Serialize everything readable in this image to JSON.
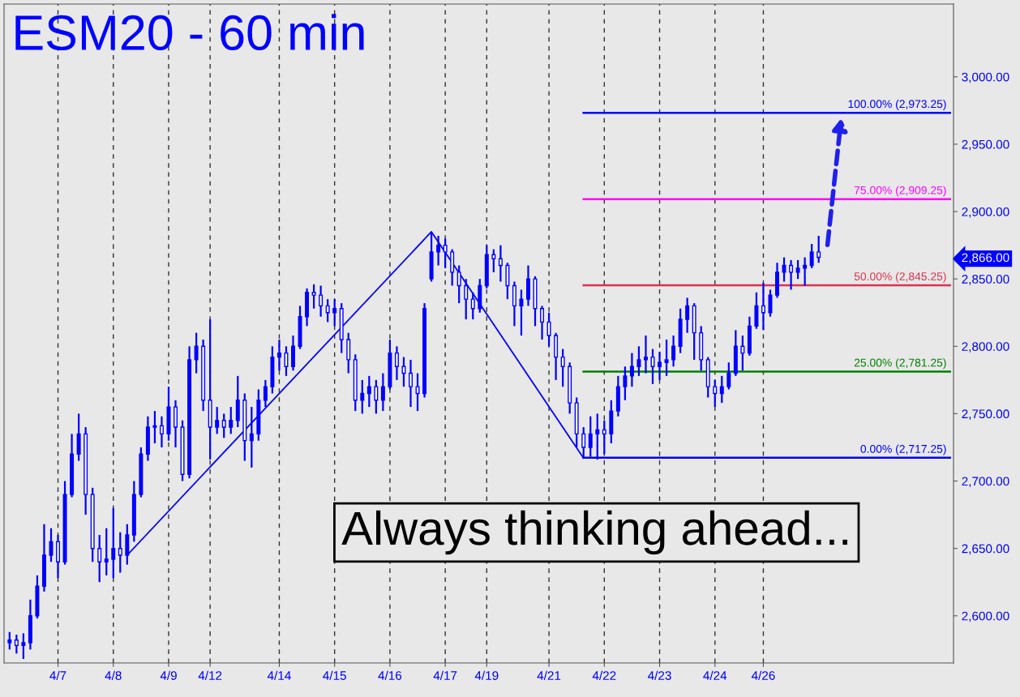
{
  "chart_data": {
    "type": "candlestick",
    "title": "ESM20 - 60 min",
    "categories": [
      null,
      null,
      null,
      null,
      null,
      null,
      null,
      "4/7",
      null,
      null,
      null,
      null,
      null,
      null,
      null,
      "4/8",
      null,
      null,
      null,
      null,
      null,
      null,
      null,
      "4/9",
      null,
      null,
      null,
      null,
      null,
      "4/12",
      null,
      null,
      null,
      null,
      null,
      null,
      null,
      null,
      null,
      "4/14",
      null,
      null,
      null,
      null,
      null,
      null,
      null,
      "4/15",
      null,
      null,
      null,
      null,
      null,
      null,
      null,
      "4/16",
      null,
      null,
      null,
      null,
      null,
      null,
      null,
      "4/17",
      null,
      null,
      null,
      null,
      null,
      "4/19",
      null,
      null,
      null,
      null,
      null,
      null,
      null,
      null,
      "4/21",
      null,
      null,
      null,
      null,
      null,
      null,
      null,
      "4/22",
      null,
      null,
      null,
      null,
      null,
      null,
      null,
      "4/23",
      null,
      null,
      null,
      null,
      null,
      null,
      null,
      "4/24",
      null,
      null,
      null,
      null,
      null,
      null,
      "4/26",
      null,
      null,
      null,
      null,
      null,
      null,
      null,
      null,
      null,
      null,
      null,
      null,
      null,
      null,
      null,
      null,
      null,
      null,
      null,
      null,
      null,
      null,
      null,
      null,
      null,
      null,
      null
    ],
    "ohlc": [
      [
        2580,
        2588,
        2575,
        2582
      ],
      [
        2582,
        2586,
        2572,
        2578
      ],
      [
        2578,
        2587,
        2568,
        2580
      ],
      [
        2580,
        2612,
        2575,
        2600
      ],
      [
        2600,
        2630,
        2598,
        2622
      ],
      [
        2622,
        2668,
        2618,
        2645
      ],
      [
        2645,
        2665,
        2640,
        2655
      ],
      [
        2655,
        2660,
        2628,
        2640
      ],
      [
        2640,
        2700,
        2638,
        2690
      ],
      [
        2690,
        2735,
        2688,
        2720
      ],
      [
        2720,
        2750,
        2715,
        2735
      ],
      [
        2735,
        2740,
        2675,
        2690
      ],
      [
        2690,
        2695,
        2640,
        2650
      ],
      [
        2650,
        2660,
        2625,
        2640
      ],
      [
        2640,
        2665,
        2630,
        2642
      ],
      [
        2642,
        2680,
        2628,
        2650
      ],
      [
        2650,
        2662,
        2632,
        2645
      ],
      [
        2645,
        2668,
        2638,
        2660
      ],
      [
        2660,
        2700,
        2655,
        2690
      ],
      [
        2690,
        2725,
        2688,
        2720
      ],
      [
        2720,
        2748,
        2715,
        2740
      ],
      [
        2740,
        2752,
        2728,
        2741
      ],
      [
        2741,
        2748,
        2725,
        2735
      ],
      [
        2735,
        2770,
        2730,
        2755
      ],
      [
        2755,
        2760,
        2725,
        2740
      ],
      [
        2740,
        2745,
        2700,
        2705
      ],
      [
        2705,
        2800,
        2702,
        2790
      ],
      [
        2790,
        2810,
        2780,
        2800
      ],
      [
        2800,
        2805,
        2752,
        2760
      ],
      [
        2760,
        2820,
        2716,
        2740
      ],
      [
        2740,
        2755,
        2735,
        2745
      ],
      [
        2745,
        2750,
        2732,
        2740
      ],
      [
        2740,
        2755,
        2735,
        2745
      ],
      [
        2745,
        2778,
        2740,
        2760
      ],
      [
        2760,
        2765,
        2715,
        2730
      ],
      [
        2730,
        2755,
        2710,
        2735
      ],
      [
        2735,
        2768,
        2730,
        2760
      ],
      [
        2760,
        2775,
        2755,
        2770
      ],
      [
        2770,
        2800,
        2765,
        2792
      ],
      [
        2792,
        2805,
        2782,
        2795
      ],
      [
        2795,
        2800,
        2778,
        2785
      ],
      [
        2785,
        2808,
        2782,
        2800
      ],
      [
        2800,
        2830,
        2798,
        2822
      ],
      [
        2822,
        2843,
        2815,
        2840
      ],
      [
        2840,
        2846,
        2828,
        2838
      ],
      [
        2838,
        2845,
        2822,
        2830
      ],
      [
        2830,
        2835,
        2818,
        2825
      ],
      [
        2825,
        2835,
        2815,
        2828
      ],
      [
        2828,
        2832,
        2795,
        2805
      ],
      [
        2805,
        2810,
        2780,
        2790
      ],
      [
        2790,
        2794,
        2752,
        2760
      ],
      [
        2760,
        2775,
        2750,
        2765
      ],
      [
        2765,
        2778,
        2755,
        2770
      ],
      [
        2770,
        2775,
        2750,
        2760
      ],
      [
        2760,
        2780,
        2752,
        2770
      ],
      [
        2770,
        2805,
        2768,
        2795
      ],
      [
        2795,
        2800,
        2775,
        2785
      ],
      [
        2785,
        2792,
        2770,
        2780
      ],
      [
        2780,
        2790,
        2755,
        2770
      ],
      [
        2770,
        2780,
        2752,
        2765
      ],
      [
        2765,
        2832,
        2762,
        2828
      ],
      [
        2850,
        2884,
        2848,
        2870
      ],
      [
        2870,
        2882,
        2860,
        2875
      ],
      [
        2875,
        2880,
        2858,
        2870
      ],
      [
        2870,
        2872,
        2845,
        2855
      ],
      [
        2855,
        2860,
        2832,
        2845
      ],
      [
        2845,
        2850,
        2820,
        2835
      ],
      [
        2835,
        2840,
        2820,
        2828
      ],
      [
        2828,
        2850,
        2825,
        2845
      ],
      [
        2845,
        2875,
        2843,
        2868
      ],
      [
        2868,
        2872,
        2855,
        2865
      ],
      [
        2865,
        2875,
        2848,
        2860
      ],
      [
        2860,
        2862,
        2835,
        2845
      ],
      [
        2845,
        2848,
        2815,
        2830
      ],
      [
        2830,
        2842,
        2808,
        2835
      ],
      [
        2835,
        2860,
        2830,
        2850
      ],
      [
        2850,
        2852,
        2815,
        2828
      ],
      [
        2828,
        2830,
        2805,
        2818
      ],
      [
        2818,
        2825,
        2800,
        2808
      ],
      [
        2808,
        2810,
        2775,
        2792
      ],
      [
        2792,
        2798,
        2770,
        2785
      ],
      [
        2785,
        2788,
        2750,
        2758
      ],
      [
        2758,
        2762,
        2725,
        2735
      ],
      [
        2735,
        2740,
        2717,
        2725
      ],
      [
        2725,
        2748,
        2718,
        2735
      ],
      [
        2735,
        2750,
        2716,
        2738
      ],
      [
        2738,
        2745,
        2720,
        2735
      ],
      [
        2735,
        2760,
        2728,
        2752
      ],
      [
        2752,
        2778,
        2748,
        2770
      ],
      [
        2770,
        2785,
        2760,
        2778
      ],
      [
        2778,
        2795,
        2770,
        2785
      ],
      [
        2785,
        2800,
        2778,
        2790
      ],
      [
        2790,
        2808,
        2780,
        2792
      ],
      [
        2792,
        2798,
        2772,
        2785
      ],
      [
        2785,
        2796,
        2775,
        2788
      ],
      [
        2788,
        2805,
        2778,
        2790
      ],
      [
        2790,
        2808,
        2785,
        2800
      ],
      [
        2800,
        2828,
        2795,
        2820
      ],
      [
        2820,
        2836,
        2810,
        2830
      ],
      [
        2830,
        2832,
        2790,
        2810
      ],
      [
        2810,
        2815,
        2782,
        2790
      ],
      [
        2790,
        2792,
        2762,
        2770
      ],
      [
        2770,
        2775,
        2755,
        2765
      ],
      [
        2765,
        2778,
        2758,
        2770
      ],
      [
        2770,
        2788,
        2768,
        2780
      ],
      [
        2780,
        2812,
        2778,
        2800
      ],
      [
        2800,
        2808,
        2782,
        2795
      ],
      [
        2795,
        2822,
        2793,
        2815
      ],
      [
        2815,
        2840,
        2813,
        2830
      ],
      [
        2830,
        2847,
        2812,
        2825
      ],
      [
        2825,
        2842,
        2822,
        2838
      ],
      [
        2838,
        2862,
        2836,
        2855
      ],
      [
        2855,
        2866,
        2848,
        2860
      ],
      [
        2860,
        2864,
        2842,
        2855
      ],
      [
        2855,
        2864,
        2850,
        2858
      ],
      [
        2858,
        2866,
        2845,
        2860
      ],
      [
        2860,
        2876,
        2858,
        2870
      ],
      [
        2870,
        2882,
        2862,
        2866
      ],
      null,
      null,
      null,
      null,
      null,
      null,
      null,
      null,
      null,
      null,
      null,
      null,
      null,
      null,
      null,
      null,
      null,
      null,
      null
    ],
    "color": "#0000ff",
    "series": [
      {
        "type": "line",
        "color": "#0000ff",
        "values": [
          null,
          null,
          null,
          null,
          null,
          null,
          null,
          null,
          null,
          null,
          null,
          null,
          null,
          null,
          null,
          null,
          null,
          2645,
          null,
          null,
          null,
          null,
          null,
          null,
          null,
          null,
          null,
          null,
          null,
          null,
          null,
          null,
          null,
          null,
          null,
          null,
          null,
          null,
          null,
          null,
          null,
          null,
          null,
          null,
          null,
          null,
          null,
          null,
          null,
          null,
          null,
          null,
          null,
          null,
          null,
          null,
          null,
          null,
          null,
          null,
          null,
          2885,
          null,
          null,
          null,
          null,
          null,
          null,
          null,
          null,
          null,
          null,
          null,
          null,
          null,
          null,
          null,
          null,
          null,
          null,
          null,
          null,
          null,
          2717,
          null,
          null,
          null,
          null,
          null,
          null,
          null,
          null,
          null,
          null,
          null,
          null,
          null,
          null,
          null,
          null,
          null,
          null,
          null,
          null,
          null,
          null,
          null,
          null,
          null,
          null,
          null,
          null,
          null,
          null,
          null,
          null,
          null,
          null,
          null,
          null,
          null,
          null,
          null,
          null,
          null,
          null,
          null,
          null,
          null,
          null,
          null,
          null,
          null,
          null,
          null,
          null,
          null
        ]
      },
      {
        "type": "line",
        "name": "100.00% (2,973.25)",
        "color": "#0000ff",
        "values": [
          null,
          null,
          null,
          null,
          null,
          null,
          null,
          null,
          null,
          null,
          null,
          null,
          null,
          null,
          null,
          null,
          null,
          null,
          null,
          null,
          null,
          null,
          null,
          null,
          null,
          null,
          null,
          null,
          null,
          null,
          null,
          null,
          null,
          null,
          null,
          null,
          null,
          null,
          null,
          null,
          null,
          null,
          null,
          null,
          null,
          null,
          null,
          null,
          null,
          null,
          null,
          null,
          null,
          null,
          null,
          null,
          null,
          null,
          null,
          null,
          null,
          null,
          null,
          null,
          null,
          null,
          null,
          null,
          null,
          null,
          null,
          null,
          null,
          null,
          null,
          null,
          null,
          null,
          null,
          null,
          null,
          null,
          null,
          2973.25,
          2973.25,
          2973.25,
          2973.25,
          2973.25,
          2973.25,
          2973.25,
          2973.25,
          2973.25,
          2973.25,
          2973.25,
          2973.25,
          2973.25,
          2973.25,
          2973.25,
          2973.25,
          2973.25,
          2973.25,
          2973.25,
          2973.25,
          2973.25,
          2973.25,
          2973.25,
          2973.25,
          2973.25,
          2973.25,
          2973.25,
          2973.25,
          2973.25,
          2973.25,
          2973.25,
          2973.25,
          2973.25,
          2973.25,
          2973.25,
          2973.25,
          2973.25,
          2973.25,
          2973.25,
          2973.25,
          2973.25,
          2973.25,
          2973.25,
          2973.25,
          2973.25,
          2973.25,
          2973.25,
          2973.25,
          2973.25,
          2973.25,
          2973.25,
          2973.25,
          2973.25,
          2973.25
        ]
      },
      {
        "type": "line",
        "name": "75.00% (2,909.25)",
        "color": "#ff00ff",
        "values": [
          null,
          null,
          null,
          null,
          null,
          null,
          null,
          null,
          null,
          null,
          null,
          null,
          null,
          null,
          null,
          null,
          null,
          null,
          null,
          null,
          null,
          null,
          null,
          null,
          null,
          null,
          null,
          null,
          null,
          null,
          null,
          null,
          null,
          null,
          null,
          null,
          null,
          null,
          null,
          null,
          null,
          null,
          null,
          null,
          null,
          null,
          null,
          null,
          null,
          null,
          null,
          null,
          null,
          null,
          null,
          null,
          null,
          null,
          null,
          null,
          null,
          null,
          null,
          null,
          null,
          null,
          null,
          null,
          null,
          null,
          null,
          null,
          null,
          null,
          null,
          null,
          null,
          null,
          null,
          null,
          null,
          null,
          null,
          2909.25,
          2909.25,
          2909.25,
          2909.25,
          2909.25,
          2909.25,
          2909.25,
          2909.25,
          2909.25,
          2909.25,
          2909.25,
          2909.25,
          2909.25,
          2909.25,
          2909.25,
          2909.25,
          2909.25,
          2909.25,
          2909.25,
          2909.25,
          2909.25,
          2909.25,
          2909.25,
          2909.25,
          2909.25,
          2909.25,
          2909.25,
          2909.25,
          2909.25,
          2909.25,
          2909.25,
          2909.25,
          2909.25,
          2909.25,
          2909.25,
          2909.25,
          2909.25,
          2909.25,
          2909.25,
          2909.25,
          2909.25,
          2909.25,
          2909.25,
          2909.25,
          2909.25,
          2909.25,
          2909.25,
          2909.25,
          2909.25,
          2909.25,
          2909.25,
          2909.25,
          2909.25,
          2909.25
        ]
      },
      {
        "type": "line",
        "name": "50.00% (2,845.25)",
        "color": "#dc3250",
        "values": [
          null,
          null,
          null,
          null,
          null,
          null,
          null,
          null,
          null,
          null,
          null,
          null,
          null,
          null,
          null,
          null,
          null,
          null,
          null,
          null,
          null,
          null,
          null,
          null,
          null,
          null,
          null,
          null,
          null,
          null,
          null,
          null,
          null,
          null,
          null,
          null,
          null,
          null,
          null,
          null,
          null,
          null,
          null,
          null,
          null,
          null,
          null,
          null,
          null,
          null,
          null,
          null,
          null,
          null,
          null,
          null,
          null,
          null,
          null,
          null,
          null,
          null,
          null,
          null,
          null,
          null,
          null,
          null,
          null,
          null,
          null,
          null,
          null,
          null,
          null,
          null,
          null,
          null,
          null,
          null,
          null,
          null,
          null,
          2845.25,
          2845.25,
          2845.25,
          2845.25,
          2845.25,
          2845.25,
          2845.25,
          2845.25,
          2845.25,
          2845.25,
          2845.25,
          2845.25,
          2845.25,
          2845.25,
          2845.25,
          2845.25,
          2845.25,
          2845.25,
          2845.25,
          2845.25,
          2845.25,
          2845.25,
          2845.25,
          2845.25,
          2845.25,
          2845.25,
          2845.25,
          2845.25,
          2845.25,
          2845.25,
          2845.25,
          2845.25,
          2845.25,
          2845.25,
          2845.25,
          2845.25,
          2845.25,
          2845.25,
          2845.25,
          2845.25,
          2845.25,
          2845.25,
          2845.25,
          2845.25,
          2845.25,
          2845.25,
          2845.25,
          2845.25,
          2845.25,
          2845.25,
          2845.25,
          2845.25,
          2845.25,
          2845.25
        ]
      },
      {
        "type": "line",
        "name": "25.00% (2,781.25)",
        "color": "#008000",
        "values": [
          null,
          null,
          null,
          null,
          null,
          null,
          null,
          null,
          null,
          null,
          null,
          null,
          null,
          null,
          null,
          null,
          null,
          null,
          null,
          null,
          null,
          null,
          null,
          null,
          null,
          null,
          null,
          null,
          null,
          null,
          null,
          null,
          null,
          null,
          null,
          null,
          null,
          null,
          null,
          null,
          null,
          null,
          null,
          null,
          null,
          null,
          null,
          null,
          null,
          null,
          null,
          null,
          null,
          null,
          null,
          null,
          null,
          null,
          null,
          null,
          null,
          null,
          null,
          null,
          null,
          null,
          null,
          null,
          null,
          null,
          null,
          null,
          null,
          null,
          null,
          null,
          null,
          null,
          null,
          null,
          null,
          null,
          null,
          2781.25,
          2781.25,
          2781.25,
          2781.25,
          2781.25,
          2781.25,
          2781.25,
          2781.25,
          2781.25,
          2781.25,
          2781.25,
          2781.25,
          2781.25,
          2781.25,
          2781.25,
          2781.25,
          2781.25,
          2781.25,
          2781.25,
          2781.25,
          2781.25,
          2781.25,
          2781.25,
          2781.25,
          2781.25,
          2781.25,
          2781.25,
          2781.25,
          2781.25,
          2781.25,
          2781.25,
          2781.25,
          2781.25,
          2781.25,
          2781.25,
          2781.25,
          2781.25,
          2781.25,
          2781.25,
          2781.25,
          2781.25,
          2781.25,
          2781.25,
          2781.25,
          2781.25,
          2781.25,
          2781.25,
          2781.25,
          2781.25,
          2781.25,
          2781.25,
          2781.25,
          2781.25,
          2781.25
        ]
      },
      {
        "type": "line",
        "name": "0.00% (2,717.25)",
        "color": "#0000ff",
        "values": [
          null,
          null,
          null,
          null,
          null,
          null,
          null,
          null,
          null,
          null,
          null,
          null,
          null,
          null,
          null,
          null,
          null,
          null,
          null,
          null,
          null,
          null,
          null,
          null,
          null,
          null,
          null,
          null,
          null,
          null,
          null,
          null,
          null,
          null,
          null,
          null,
          null,
          null,
          null,
          null,
          null,
          null,
          null,
          null,
          null,
          null,
          null,
          null,
          null,
          null,
          null,
          null,
          null,
          null,
          null,
          null,
          null,
          null,
          null,
          null,
          null,
          null,
          null,
          null,
          null,
          null,
          null,
          null,
          null,
          null,
          null,
          null,
          null,
          null,
          null,
          null,
          null,
          null,
          null,
          null,
          null,
          null,
          null,
          2717.25,
          2717.25,
          2717.25,
          2717.25,
          2717.25,
          2717.25,
          2717.25,
          2717.25,
          2717.25,
          2717.25,
          2717.25,
          2717.25,
          2717.25,
          2717.25,
          2717.25,
          2717.25,
          2717.25,
          2717.25,
          2717.25,
          2717.25,
          2717.25,
          2717.25,
          2717.25,
          2717.25,
          2717.25,
          2717.25,
          2717.25,
          2717.25,
          2717.25,
          2717.25,
          2717.25,
          2717.25,
          2717.25,
          2717.25,
          2717.25,
          2717.25,
          2717.25,
          2717.25,
          2717.25,
          2717.25,
          2717.25,
          2717.25,
          2717.25,
          2717.25,
          2717.25,
          2717.25,
          2717.25,
          2717.25,
          2717.25,
          2717.25,
          2717.25,
          2717.25,
          2717.25,
          2717.25
        ]
      }
    ],
    "ylim": [
      2565,
      3054
    ],
    "yticks": [
      {
        "value": 2600,
        "label": "2,600.00"
      },
      {
        "value": 2650,
        "label": "2,650.00"
      },
      {
        "value": 2700,
        "label": "2,700.00"
      },
      {
        "value": 2750,
        "label": "2,750.00"
      },
      {
        "value": 2800,
        "label": "2,800.00"
      },
      {
        "value": 2850,
        "label": "2,850.00"
      },
      {
        "value": 2900,
        "label": "2,900.00"
      },
      {
        "value": 2950,
        "label": "2,950.00"
      },
      {
        "value": 3000,
        "label": "3,000.00"
      },
      {
        "value": 2866,
        "label": "2,866.00"
      }
    ],
    "grid": "x",
    "annotations": [
      "Always thinking ahead..."
    ]
  }
}
